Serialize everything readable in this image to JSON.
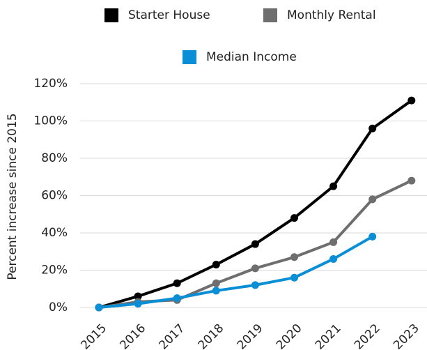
{
  "chart_data": {
    "type": "line",
    "y_label": "Percent increase since 2015",
    "categories": [
      "2015",
      "2016",
      "2017",
      "2018",
      "2019",
      "2020",
      "2021",
      "2022",
      "2023"
    ],
    "series": [
      {
        "name": "Starter House",
        "color": "#000000",
        "values": [
          0,
          6,
          13,
          23,
          34,
          48,
          65,
          96,
          111
        ]
      },
      {
        "name": "Monthly Rental",
        "color": "#6e6e6e",
        "values": [
          0,
          3,
          4,
          13,
          21,
          27,
          35,
          58,
          68
        ]
      },
      {
        "name": "Median Income",
        "color": "#0a8fd6",
        "values": [
          0,
          2,
          5,
          9,
          12,
          16,
          26,
          38,
          null
        ]
      }
    ],
    "ylim": [
      0,
      120
    ],
    "yticks": [
      {
        "value": 0,
        "label": "0%"
      },
      {
        "value": 20,
        "label": "20%"
      },
      {
        "value": 40,
        "label": "40%"
      },
      {
        "value": 60,
        "label": "60%"
      },
      {
        "value": 80,
        "label": "80%"
      },
      {
        "value": 100,
        "label": "100%"
      },
      {
        "value": 120,
        "label": "120%"
      }
    ],
    "grid": true
  }
}
